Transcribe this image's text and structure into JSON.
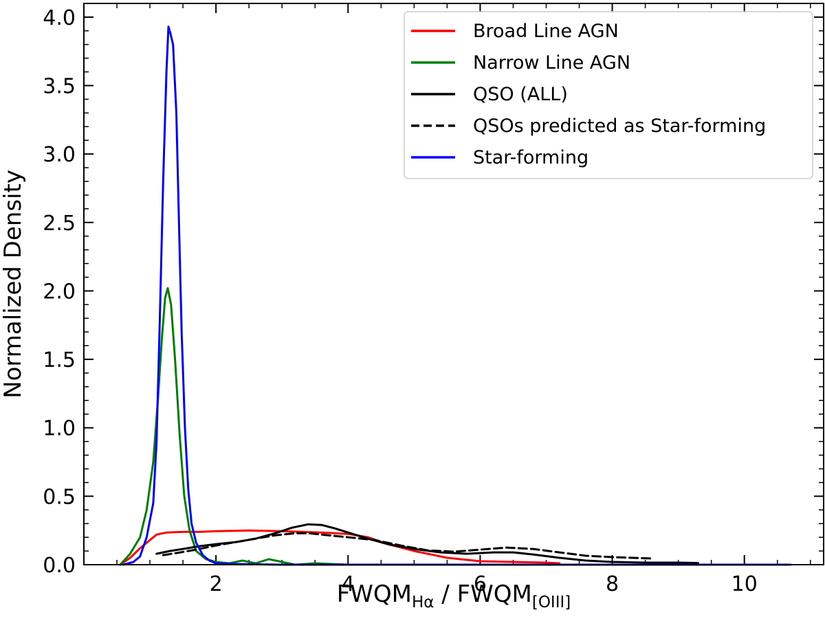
{
  "chart_data": {
    "type": "line",
    "title": "",
    "xlabel": {
      "main1": "FWQM",
      "sub1": "Hα",
      "sep": " / ",
      "main2": "FWQM",
      "sub2": "[OIII]"
    },
    "ylabel": "Normalized Density",
    "xlim": [
      0.0,
      11.2
    ],
    "ylim": [
      0.0,
      4.1
    ],
    "xticks": [
      2,
      4,
      6,
      8,
      10
    ],
    "xtick_labels": [
      "2",
      "4",
      "6",
      "8",
      "10"
    ],
    "xminor_step": 0.5,
    "yticks": [
      0.0,
      0.5,
      1.0,
      1.5,
      2.0,
      2.5,
      3.0,
      3.5,
      4.0
    ],
    "ytick_labels": [
      "0.0",
      "0.5",
      "1.0",
      "1.5",
      "2.0",
      "2.5",
      "3.0",
      "3.5",
      "4.0"
    ],
    "yminor_step": 0.1,
    "grid": false,
    "legend_position": "top-right",
    "series": [
      {
        "name": "Broad Line AGN",
        "color": "#ff0000",
        "style": "solid",
        "points": [
          [
            0.55,
            0.0
          ],
          [
            0.7,
            0.05
          ],
          [
            0.85,
            0.12
          ],
          [
            1.0,
            0.18
          ],
          [
            1.1,
            0.22
          ],
          [
            1.25,
            0.235
          ],
          [
            1.5,
            0.24
          ],
          [
            1.75,
            0.24
          ],
          [
            2.0,
            0.245
          ],
          [
            2.5,
            0.25
          ],
          [
            3.0,
            0.245
          ],
          [
            3.3,
            0.24
          ],
          [
            3.6,
            0.235
          ],
          [
            4.0,
            0.225
          ],
          [
            4.3,
            0.2
          ],
          [
            4.6,
            0.15
          ],
          [
            5.0,
            0.1
          ],
          [
            5.5,
            0.05
          ],
          [
            6.0,
            0.025
          ],
          [
            6.5,
            0.02
          ],
          [
            7.0,
            0.015
          ],
          [
            7.2,
            0.01
          ]
        ]
      },
      {
        "name": "Narrow Line AGN",
        "color": "#008000",
        "style": "solid",
        "points": [
          [
            0.55,
            0.0
          ],
          [
            0.7,
            0.08
          ],
          [
            0.85,
            0.2
          ],
          [
            0.95,
            0.4
          ],
          [
            1.05,
            0.75
          ],
          [
            1.12,
            1.2
          ],
          [
            1.18,
            1.65
          ],
          [
            1.23,
            1.95
          ],
          [
            1.27,
            2.02
          ],
          [
            1.32,
            1.9
          ],
          [
            1.38,
            1.5
          ],
          [
            1.45,
            0.95
          ],
          [
            1.52,
            0.5
          ],
          [
            1.6,
            0.25
          ],
          [
            1.7,
            0.1
          ],
          [
            1.85,
            0.04
          ],
          [
            2.0,
            0.02
          ],
          [
            2.2,
            0.01
          ],
          [
            2.4,
            0.03
          ],
          [
            2.6,
            0.01
          ],
          [
            2.8,
            0.04
          ],
          [
            3.0,
            0.02
          ],
          [
            3.2,
            0.0
          ],
          [
            3.5,
            0.01
          ],
          [
            4.0,
            0.0
          ],
          [
            5.0,
            0.0
          ],
          [
            6.0,
            0.0
          ],
          [
            7.0,
            0.0
          ]
        ]
      },
      {
        "name": "QSO (ALL)",
        "color": "#000000",
        "style": "solid",
        "points": [
          [
            1.1,
            0.08
          ],
          [
            1.3,
            0.1
          ],
          [
            1.5,
            0.115
          ],
          [
            1.75,
            0.135
          ],
          [
            2.0,
            0.15
          ],
          [
            2.3,
            0.165
          ],
          [
            2.6,
            0.19
          ],
          [
            2.9,
            0.23
          ],
          [
            3.15,
            0.27
          ],
          [
            3.4,
            0.295
          ],
          [
            3.6,
            0.29
          ],
          [
            3.8,
            0.265
          ],
          [
            4.0,
            0.235
          ],
          [
            4.3,
            0.19
          ],
          [
            4.6,
            0.15
          ],
          [
            5.0,
            0.115
          ],
          [
            5.4,
            0.09
          ],
          [
            5.8,
            0.08
          ],
          [
            6.2,
            0.09
          ],
          [
            6.5,
            0.09
          ],
          [
            6.8,
            0.075
          ],
          [
            7.2,
            0.05
          ],
          [
            7.6,
            0.03
          ],
          [
            8.0,
            0.02
          ],
          [
            8.5,
            0.015
          ],
          [
            9.0,
            0.015
          ],
          [
            9.3,
            0.012
          ]
        ]
      },
      {
        "name": "QSOs predicted as Star-forming",
        "color": "#000000",
        "style": "dashed",
        "points": [
          [
            1.2,
            0.07
          ],
          [
            1.4,
            0.085
          ],
          [
            1.7,
            0.11
          ],
          [
            2.0,
            0.14
          ],
          [
            2.3,
            0.165
          ],
          [
            2.6,
            0.19
          ],
          [
            2.9,
            0.215
          ],
          [
            3.2,
            0.23
          ],
          [
            3.4,
            0.23
          ],
          [
            3.7,
            0.215
          ],
          [
            4.0,
            0.2
          ],
          [
            4.4,
            0.18
          ],
          [
            4.8,
            0.14
          ],
          [
            5.2,
            0.105
          ],
          [
            5.6,
            0.095
          ],
          [
            6.0,
            0.11
          ],
          [
            6.4,
            0.125
          ],
          [
            6.8,
            0.115
          ],
          [
            7.2,
            0.09
          ],
          [
            7.6,
            0.065
          ],
          [
            8.0,
            0.055
          ],
          [
            8.3,
            0.05
          ],
          [
            8.6,
            0.045
          ]
        ]
      },
      {
        "name": "Star-forming",
        "color": "#0000ff",
        "style": "solid",
        "points": [
          [
            0.6,
            0.0
          ],
          [
            0.75,
            0.02
          ],
          [
            0.85,
            0.06
          ],
          [
            0.95,
            0.2
          ],
          [
            1.05,
            0.45
          ],
          [
            1.1,
            0.9
          ],
          [
            1.15,
            1.8
          ],
          [
            1.2,
            2.8
          ],
          [
            1.25,
            3.6
          ],
          [
            1.28,
            3.93
          ],
          [
            1.31,
            3.88
          ],
          [
            1.35,
            3.8
          ],
          [
            1.4,
            3.3
          ],
          [
            1.44,
            2.5
          ],
          [
            1.48,
            1.7
          ],
          [
            1.53,
            1.0
          ],
          [
            1.58,
            0.55
          ],
          [
            1.63,
            0.3
          ],
          [
            1.7,
            0.16
          ],
          [
            1.8,
            0.07
          ],
          [
            1.9,
            0.03
          ],
          [
            2.0,
            0.01
          ],
          [
            2.3,
            0.005
          ],
          [
            3.0,
            0.0
          ],
          [
            5.0,
            0.0
          ],
          [
            7.0,
            0.0
          ],
          [
            9.0,
            0.0
          ],
          [
            10.7,
            0.0
          ]
        ]
      }
    ]
  }
}
